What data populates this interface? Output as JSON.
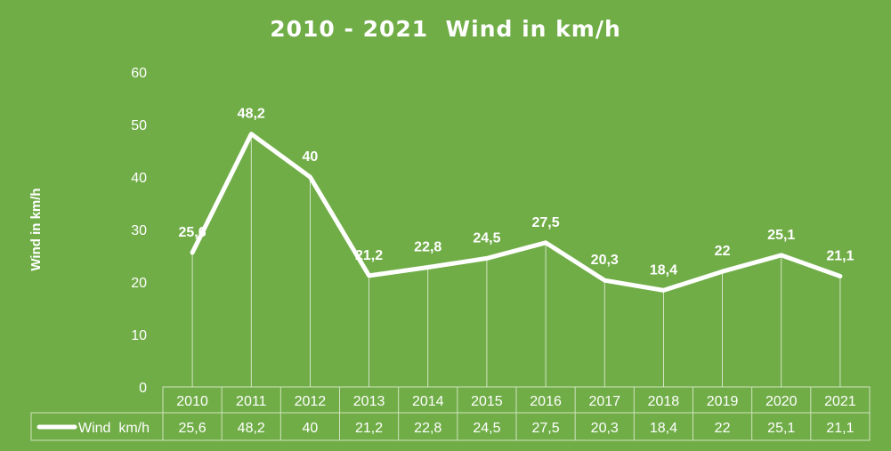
{
  "chart_data": {
    "type": "line",
    "title": "2010 - 2021  Wind in km/h",
    "ylabel": "Wind in km/h",
    "xlabel": "",
    "ylim": [
      0,
      60
    ],
    "yticks": [
      "0",
      "10",
      "20",
      "30",
      "40",
      "50",
      "60"
    ],
    "grid": false,
    "legend": "data-table",
    "colors": {
      "background": "#70ad47",
      "line": "#ffffff",
      "text": "#ffffff"
    },
    "categories": [
      "2010",
      "2011",
      "2012",
      "2013",
      "2014",
      "2015",
      "2016",
      "2017",
      "2018",
      "2019",
      "2020",
      "2021"
    ],
    "series": [
      {
        "name": "Wind  km/h",
        "values": [
          25.6,
          48.2,
          40,
          21.2,
          22.8,
          24.5,
          27.5,
          20.3,
          18.4,
          22,
          25.1,
          21.1
        ],
        "labels": [
          "25,6",
          "48,2",
          "40",
          "21,2",
          "22,8",
          "24,5",
          "27,5",
          "20,3",
          "18,4",
          "22",
          "25,1",
          "21,1"
        ]
      }
    ]
  }
}
